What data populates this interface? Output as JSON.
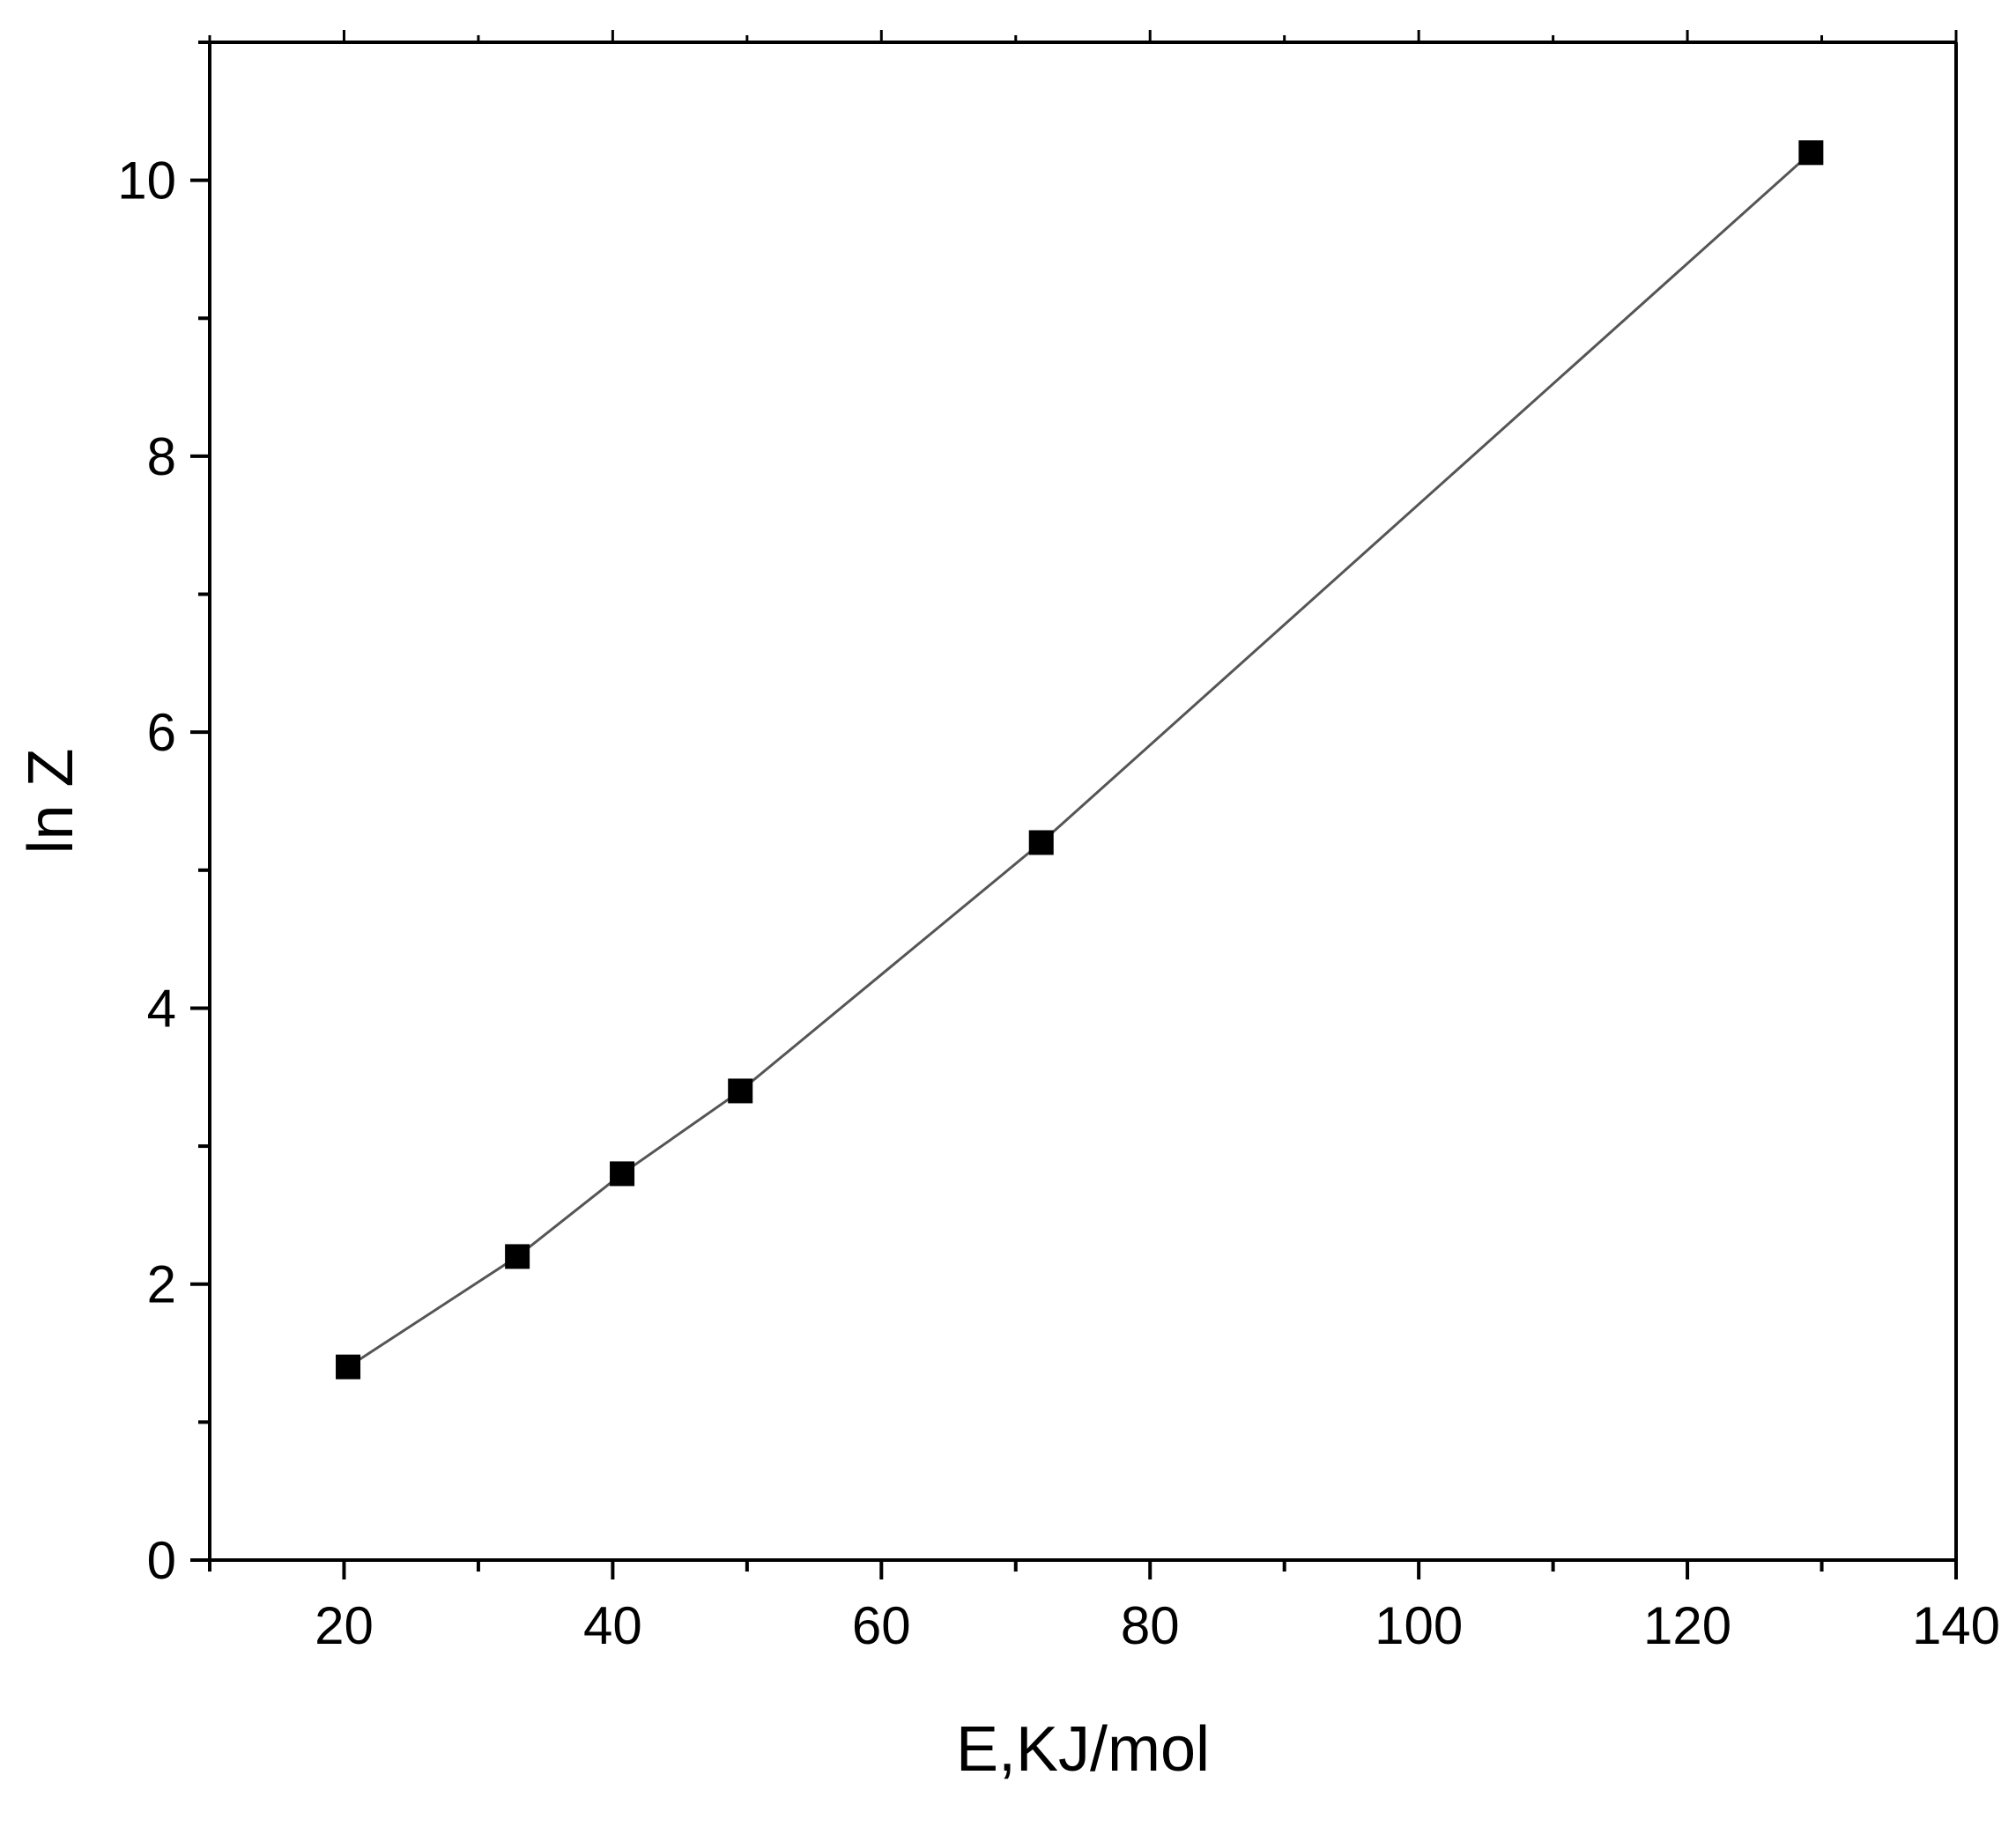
{
  "chart_data": {
    "type": "line",
    "title": "",
    "xlabel": "E,KJ/mol",
    "ylabel": "ln Z",
    "xlim": [
      10,
      140
    ],
    "ylim": [
      0,
      11
    ],
    "x_ticks": [
      20,
      40,
      60,
      80,
      100,
      120,
      140
    ],
    "y_ticks": [
      0,
      2,
      4,
      6,
      8,
      10
    ],
    "grid": false,
    "legend": "none",
    "series": [
      {
        "x": [
          20.3,
          32.9,
          40.7,
          49.5,
          71.9,
          129.2
        ],
        "y": [
          1.4,
          2.2,
          2.8,
          3.4,
          5.2,
          10.2
        ],
        "marker": "square",
        "color": "#000000",
        "line_color": "#555555"
      }
    ]
  }
}
